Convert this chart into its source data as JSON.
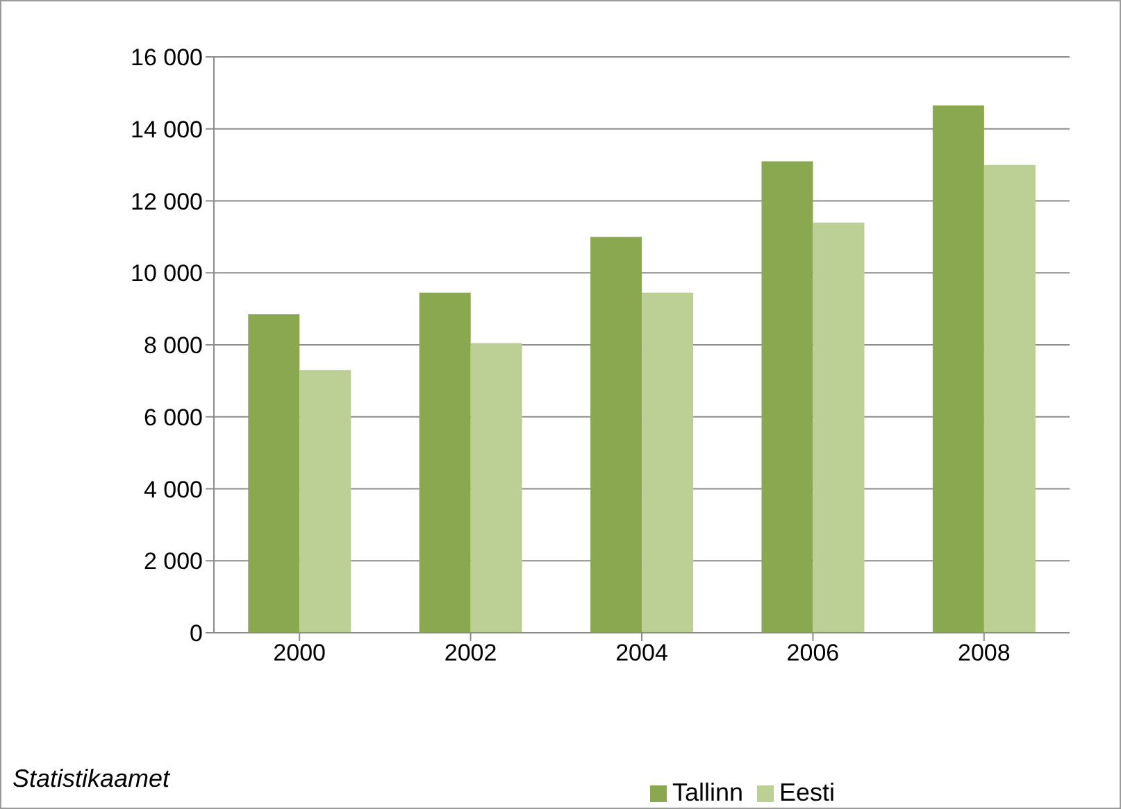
{
  "chart_data": {
    "type": "bar",
    "categories": [
      "2000",
      "2002",
      "2004",
      "2006",
      "2008"
    ],
    "series": [
      {
        "name": "Tallinn",
        "color": "#8aa84f",
        "values": [
          8850,
          9450,
          11000,
          13100,
          14650
        ]
      },
      {
        "name": "Eesti",
        "color": "#bcd096",
        "values": [
          7300,
          8050,
          9450,
          11400,
          13000
        ]
      }
    ],
    "ylim": [
      0,
      16000
    ],
    "yticks": [
      {
        "value": 0,
        "label": "0"
      },
      {
        "value": 2000,
        "label": "2 000"
      },
      {
        "value": 4000,
        "label": "4 000"
      },
      {
        "value": 6000,
        "label": "6 000"
      },
      {
        "value": 8000,
        "label": "8 000"
      },
      {
        "value": 10000,
        "label": "10 000"
      },
      {
        "value": 12000,
        "label": "12 000"
      },
      {
        "value": 14000,
        "label": "14 000"
      },
      {
        "value": 16000,
        "label": "16 000"
      }
    ],
    "grid": "y",
    "legend": "bottom",
    "annotations": [
      "Statistikaamet"
    ]
  }
}
